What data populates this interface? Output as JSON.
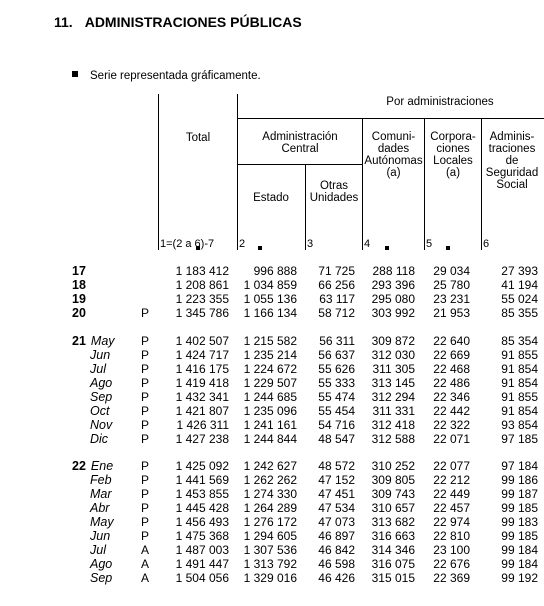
{
  "title": {
    "number": "11.",
    "text": "ADMINISTRACIONES PÚBLICAS"
  },
  "note": "Serie representada gráficamente.",
  "headers": {
    "group": "Por administraciones",
    "total": "Total",
    "central": "Administración Central",
    "estado": "Estado",
    "otras": "Otras Unidades",
    "ccaa": "Comuni- dades Autónomas (a)",
    "corp": "Corpora- ciones Locales (a)",
    "ss": "Adminis- traciones de Seguridad Social"
  },
  "column_numbers": [
    "1=(2 a 6)-7",
    "2",
    "3",
    "4",
    "5",
    "6"
  ],
  "rows": [
    {
      "year": "17",
      "month": "",
      "flag": "",
      "values": [
        "1 183 412",
        "996 888",
        "71 725",
        "288 118",
        "29 034",
        "27 393"
      ]
    },
    {
      "year": "18",
      "month": "",
      "flag": "",
      "values": [
        "1 208 861",
        "1 034 859",
        "66 256",
        "293 396",
        "25 780",
        "41 194"
      ]
    },
    {
      "year": "19",
      "month": "",
      "flag": "",
      "values": [
        "1 223 355",
        "1 055 136",
        "63 117",
        "295 080",
        "23 231",
        "55 024"
      ]
    },
    {
      "year": "20",
      "month": "",
      "flag": "P",
      "values": [
        "1 345 786",
        "1 166 134",
        "58 712",
        "303 992",
        "21 953",
        "85 355"
      ]
    },
    {
      "year": "21",
      "month": "May",
      "flag": "P",
      "values": [
        "1 402 507",
        "1 215 582",
        "56 311",
        "309 872",
        "22 640",
        "85 354"
      ]
    },
    {
      "year": "",
      "month": "Jun",
      "flag": "P",
      "values": [
        "1 424 717",
        "1 235 214",
        "56 637",
        "312 030",
        "22 669",
        "91 855"
      ]
    },
    {
      "year": "",
      "month": "Jul",
      "flag": "P",
      "values": [
        "1 416 175",
        "1 224 672",
        "55 626",
        "311 305",
        "22 468",
        "91 854"
      ]
    },
    {
      "year": "",
      "month": "Ago",
      "flag": "P",
      "values": [
        "1 419 418",
        "1 229 507",
        "55 333",
        "313 145",
        "22 486",
        "91 854"
      ]
    },
    {
      "year": "",
      "month": "Sep",
      "flag": "P",
      "values": [
        "1 432 341",
        "1 244 685",
        "55 474",
        "312 294",
        "22 346",
        "91 855"
      ]
    },
    {
      "year": "",
      "month": "Oct",
      "flag": "P",
      "values": [
        "1 421 807",
        "1 235 096",
        "55 454",
        "311 331",
        "22 442",
        "91 854"
      ]
    },
    {
      "year": "",
      "month": "Nov",
      "flag": "P",
      "values": [
        "1 426 311",
        "1 241 161",
        "54 716",
        "312 418",
        "22 322",
        "93 854"
      ]
    },
    {
      "year": "",
      "month": "Dic",
      "flag": "P",
      "values": [
        "1 427 238",
        "1 244 844",
        "48 547",
        "312 588",
        "22 071",
        "97 185"
      ]
    },
    {
      "year": "22",
      "month": "Ene",
      "flag": "P",
      "values": [
        "1 425 092",
        "1 242 627",
        "48 572",
        "310 252",
        "22 077",
        "97 184"
      ]
    },
    {
      "year": "",
      "month": "Feb",
      "flag": "P",
      "values": [
        "1 441 569",
        "1 262 262",
        "47 152",
        "309 805",
        "22 212",
        "99 186"
      ]
    },
    {
      "year": "",
      "month": "Mar",
      "flag": "P",
      "values": [
        "1 453 855",
        "1 274 330",
        "47 451",
        "309 743",
        "22 449",
        "99 187"
      ]
    },
    {
      "year": "",
      "month": "Abr",
      "flag": "P",
      "values": [
        "1 445 428",
        "1 264 289",
        "47 534",
        "310 657",
        "22 457",
        "99 185"
      ]
    },
    {
      "year": "",
      "month": "May",
      "flag": "P",
      "values": [
        "1 456 493",
        "1 276 172",
        "47 073",
        "313 682",
        "22 974",
        "99 183"
      ]
    },
    {
      "year": "",
      "month": "Jun",
      "flag": "P",
      "values": [
        "1 475 368",
        "1 294 605",
        "46 897",
        "316 663",
        "22 810",
        "99 185"
      ]
    },
    {
      "year": "",
      "month": "Jul",
      "flag": "A",
      "values": [
        "1 487 003",
        "1 307 536",
        "46 842",
        "314 346",
        "23 100",
        "99 184"
      ]
    },
    {
      "year": "",
      "month": "Ago",
      "flag": "A",
      "values": [
        "1 491 447",
        "1 313 792",
        "46 598",
        "316 075",
        "22 676",
        "99 184"
      ]
    },
    {
      "year": "",
      "month": "Sep",
      "flag": "A",
      "values": [
        "1 504 056",
        "1 329 016",
        "46 426",
        "315 015",
        "22 369",
        "99 192"
      ]
    }
  ]
}
